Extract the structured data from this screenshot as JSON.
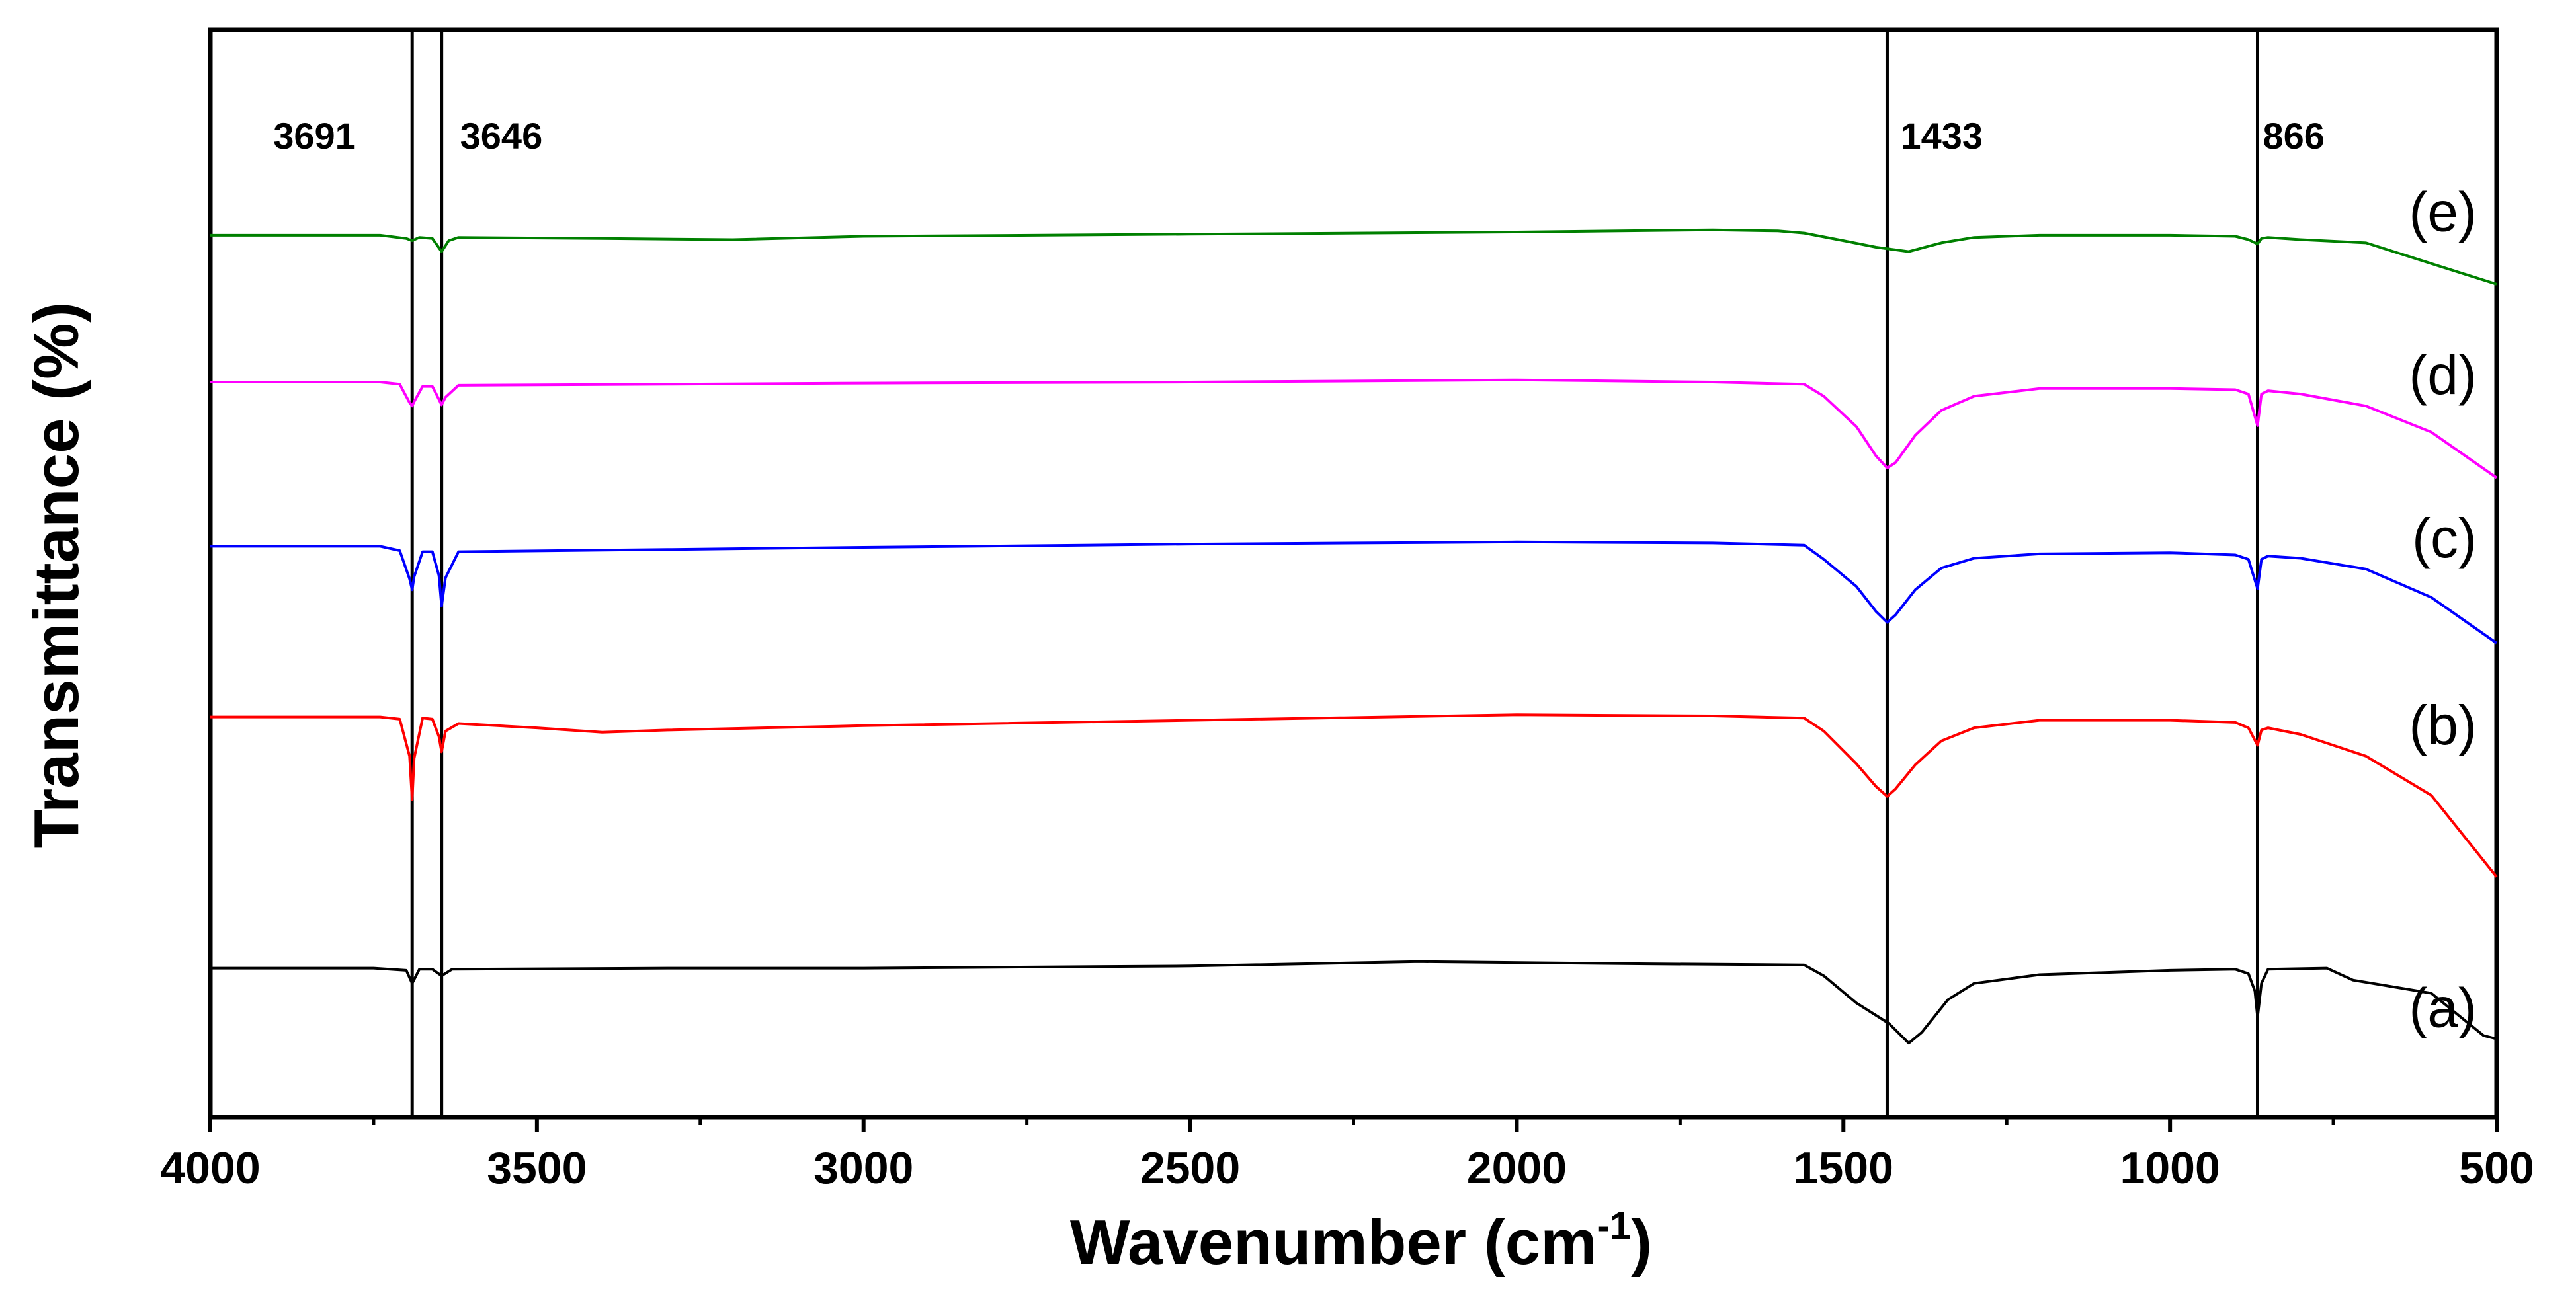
{
  "chart_data": {
    "type": "line",
    "title": "",
    "xlabel": "Wavenumber (cm",
    "xlabel_sup": "-1",
    "xlabel_close": ")",
    "ylabel": "Transmittance (%)",
    "xlim": [
      4000,
      500
    ],
    "xticks": [
      "4000",
      "3500",
      "3000",
      "2500",
      "2000",
      "1500",
      "1000",
      "500"
    ],
    "ylim": [
      0,
      100
    ],
    "grid": false,
    "peak_markers": [
      {
        "wavenumber": 3691,
        "label": "3691"
      },
      {
        "wavenumber": 3646,
        "label": "3646"
      },
      {
        "wavenumber": 1433,
        "label": "1433"
      },
      {
        "wavenumber": 866,
        "label": "866"
      }
    ],
    "series": [
      {
        "name": "(a)",
        "color": "#000000",
        "points": [
          [
            4000,
            13.7
          ],
          [
            3750,
            13.7
          ],
          [
            3700,
            13.5
          ],
          [
            3691,
            12.3
          ],
          [
            3680,
            13.6
          ],
          [
            3660,
            13.6
          ],
          [
            3646,
            13.0
          ],
          [
            3630,
            13.6
          ],
          [
            3300,
            13.7
          ],
          [
            3000,
            13.7
          ],
          [
            2500,
            13.9
          ],
          [
            2150,
            14.3
          ],
          [
            1800,
            14.1
          ],
          [
            1560,
            14.0
          ],
          [
            1530,
            13.0
          ],
          [
            1480,
            10.5
          ],
          [
            1430,
            8.6
          ],
          [
            1400,
            6.8
          ],
          [
            1380,
            7.8
          ],
          [
            1340,
            10.8
          ],
          [
            1300,
            12.3
          ],
          [
            1200,
            13.1
          ],
          [
            1000,
            13.5
          ],
          [
            900,
            13.6
          ],
          [
            880,
            13.2
          ],
          [
            870,
            11.6
          ],
          [
            866,
            9.2
          ],
          [
            860,
            12.3
          ],
          [
            850,
            13.6
          ],
          [
            760,
            13.7
          ],
          [
            720,
            12.6
          ],
          [
            600,
            11.4
          ],
          [
            520,
            7.5
          ],
          [
            500,
            7.2
          ]
        ]
      },
      {
        "name": "(b)",
        "color": "#ff0000",
        "points": [
          [
            4000,
            36.8
          ],
          [
            3740,
            36.8
          ],
          [
            3710,
            36.6
          ],
          [
            3695,
            33.2
          ],
          [
            3691,
            29.2
          ],
          [
            3688,
            33.0
          ],
          [
            3675,
            36.7
          ],
          [
            3660,
            36.6
          ],
          [
            3650,
            35.0
          ],
          [
            3646,
            33.6
          ],
          [
            3640,
            35.5
          ],
          [
            3620,
            36.2
          ],
          [
            3500,
            35.8
          ],
          [
            3400,
            35.4
          ],
          [
            3300,
            35.6
          ],
          [
            3000,
            36.0
          ],
          [
            2500,
            36.5
          ],
          [
            2000,
            37.0
          ],
          [
            1700,
            36.9
          ],
          [
            1560,
            36.7
          ],
          [
            1530,
            35.5
          ],
          [
            1480,
            32.5
          ],
          [
            1450,
            30.4
          ],
          [
            1433,
            29.5
          ],
          [
            1420,
            30.2
          ],
          [
            1390,
            32.4
          ],
          [
            1350,
            34.6
          ],
          [
            1300,
            35.8
          ],
          [
            1200,
            36.5
          ],
          [
            1000,
            36.5
          ],
          [
            900,
            36.3
          ],
          [
            880,
            35.8
          ],
          [
            866,
            34.2
          ],
          [
            860,
            35.6
          ],
          [
            850,
            35.8
          ],
          [
            800,
            35.2
          ],
          [
            700,
            33.2
          ],
          [
            600,
            29.6
          ],
          [
            500,
            22.1
          ]
        ]
      },
      {
        "name": "(c)",
        "color": "#0000ff",
        "points": [
          [
            4000,
            52.5
          ],
          [
            3740,
            52.5
          ],
          [
            3710,
            52.1
          ],
          [
            3695,
            49.5
          ],
          [
            3691,
            48.5
          ],
          [
            3688,
            49.7
          ],
          [
            3675,
            52.0
          ],
          [
            3660,
            52.0
          ],
          [
            3650,
            49.8
          ],
          [
            3646,
            47.0
          ],
          [
            3640,
            49.6
          ],
          [
            3620,
            52.0
          ],
          [
            3300,
            52.2
          ],
          [
            3000,
            52.4
          ],
          [
            2500,
            52.7
          ],
          [
            2000,
            52.9
          ],
          [
            1700,
            52.8
          ],
          [
            1560,
            52.6
          ],
          [
            1530,
            51.3
          ],
          [
            1480,
            48.8
          ],
          [
            1450,
            46.5
          ],
          [
            1433,
            45.5
          ],
          [
            1420,
            46.2
          ],
          [
            1390,
            48.5
          ],
          [
            1350,
            50.5
          ],
          [
            1300,
            51.4
          ],
          [
            1200,
            51.8
          ],
          [
            1000,
            51.9
          ],
          [
            900,
            51.7
          ],
          [
            880,
            51.3
          ],
          [
            866,
            48.6
          ],
          [
            860,
            51.3
          ],
          [
            850,
            51.6
          ],
          [
            800,
            51.4
          ],
          [
            700,
            50.4
          ],
          [
            600,
            47.8
          ],
          [
            500,
            43.6
          ]
        ]
      },
      {
        "name": "(d)",
        "color": "#ff00ff",
        "points": [
          [
            4000,
            67.6
          ],
          [
            3740,
            67.6
          ],
          [
            3710,
            67.4
          ],
          [
            3695,
            65.7
          ],
          [
            3691,
            65.4
          ],
          [
            3688,
            65.8
          ],
          [
            3675,
            67.2
          ],
          [
            3660,
            67.2
          ],
          [
            3650,
            66.0
          ],
          [
            3646,
            65.5
          ],
          [
            3640,
            66.2
          ],
          [
            3620,
            67.3
          ],
          [
            3300,
            67.4
          ],
          [
            3000,
            67.5
          ],
          [
            2500,
            67.6
          ],
          [
            2000,
            67.8
          ],
          [
            1700,
            67.6
          ],
          [
            1560,
            67.4
          ],
          [
            1530,
            66.3
          ],
          [
            1480,
            63.5
          ],
          [
            1450,
            60.8
          ],
          [
            1433,
            59.7
          ],
          [
            1420,
            60.2
          ],
          [
            1390,
            62.7
          ],
          [
            1350,
            65.0
          ],
          [
            1300,
            66.3
          ],
          [
            1200,
            67.0
          ],
          [
            1000,
            67.0
          ],
          [
            900,
            66.9
          ],
          [
            880,
            66.5
          ],
          [
            866,
            63.6
          ],
          [
            860,
            66.5
          ],
          [
            850,
            66.8
          ],
          [
            800,
            66.5
          ],
          [
            700,
            65.4
          ],
          [
            600,
            63.0
          ],
          [
            500,
            58.8
          ]
        ]
      },
      {
        "name": "(e)",
        "color": "#008000",
        "points": [
          [
            4000,
            81.1
          ],
          [
            3740,
            81.1
          ],
          [
            3700,
            80.8
          ],
          [
            3691,
            80.6
          ],
          [
            3680,
            80.9
          ],
          [
            3660,
            80.8
          ],
          [
            3646,
            79.6
          ],
          [
            3635,
            80.6
          ],
          [
            3620,
            80.9
          ],
          [
            3400,
            80.8
          ],
          [
            3200,
            80.7
          ],
          [
            3000,
            81.0
          ],
          [
            2500,
            81.2
          ],
          [
            2000,
            81.4
          ],
          [
            1700,
            81.6
          ],
          [
            1600,
            81.5
          ],
          [
            1560,
            81.3
          ],
          [
            1500,
            80.6
          ],
          [
            1450,
            80.0
          ],
          [
            1400,
            79.6
          ],
          [
            1350,
            80.4
          ],
          [
            1300,
            80.9
          ],
          [
            1200,
            81.1
          ],
          [
            1000,
            81.1
          ],
          [
            900,
            81.0
          ],
          [
            880,
            80.7
          ],
          [
            866,
            80.3
          ],
          [
            860,
            80.8
          ],
          [
            850,
            80.9
          ],
          [
            800,
            80.7
          ],
          [
            700,
            80.4
          ],
          [
            600,
            78.5
          ],
          [
            500,
            76.6
          ]
        ]
      }
    ]
  }
}
